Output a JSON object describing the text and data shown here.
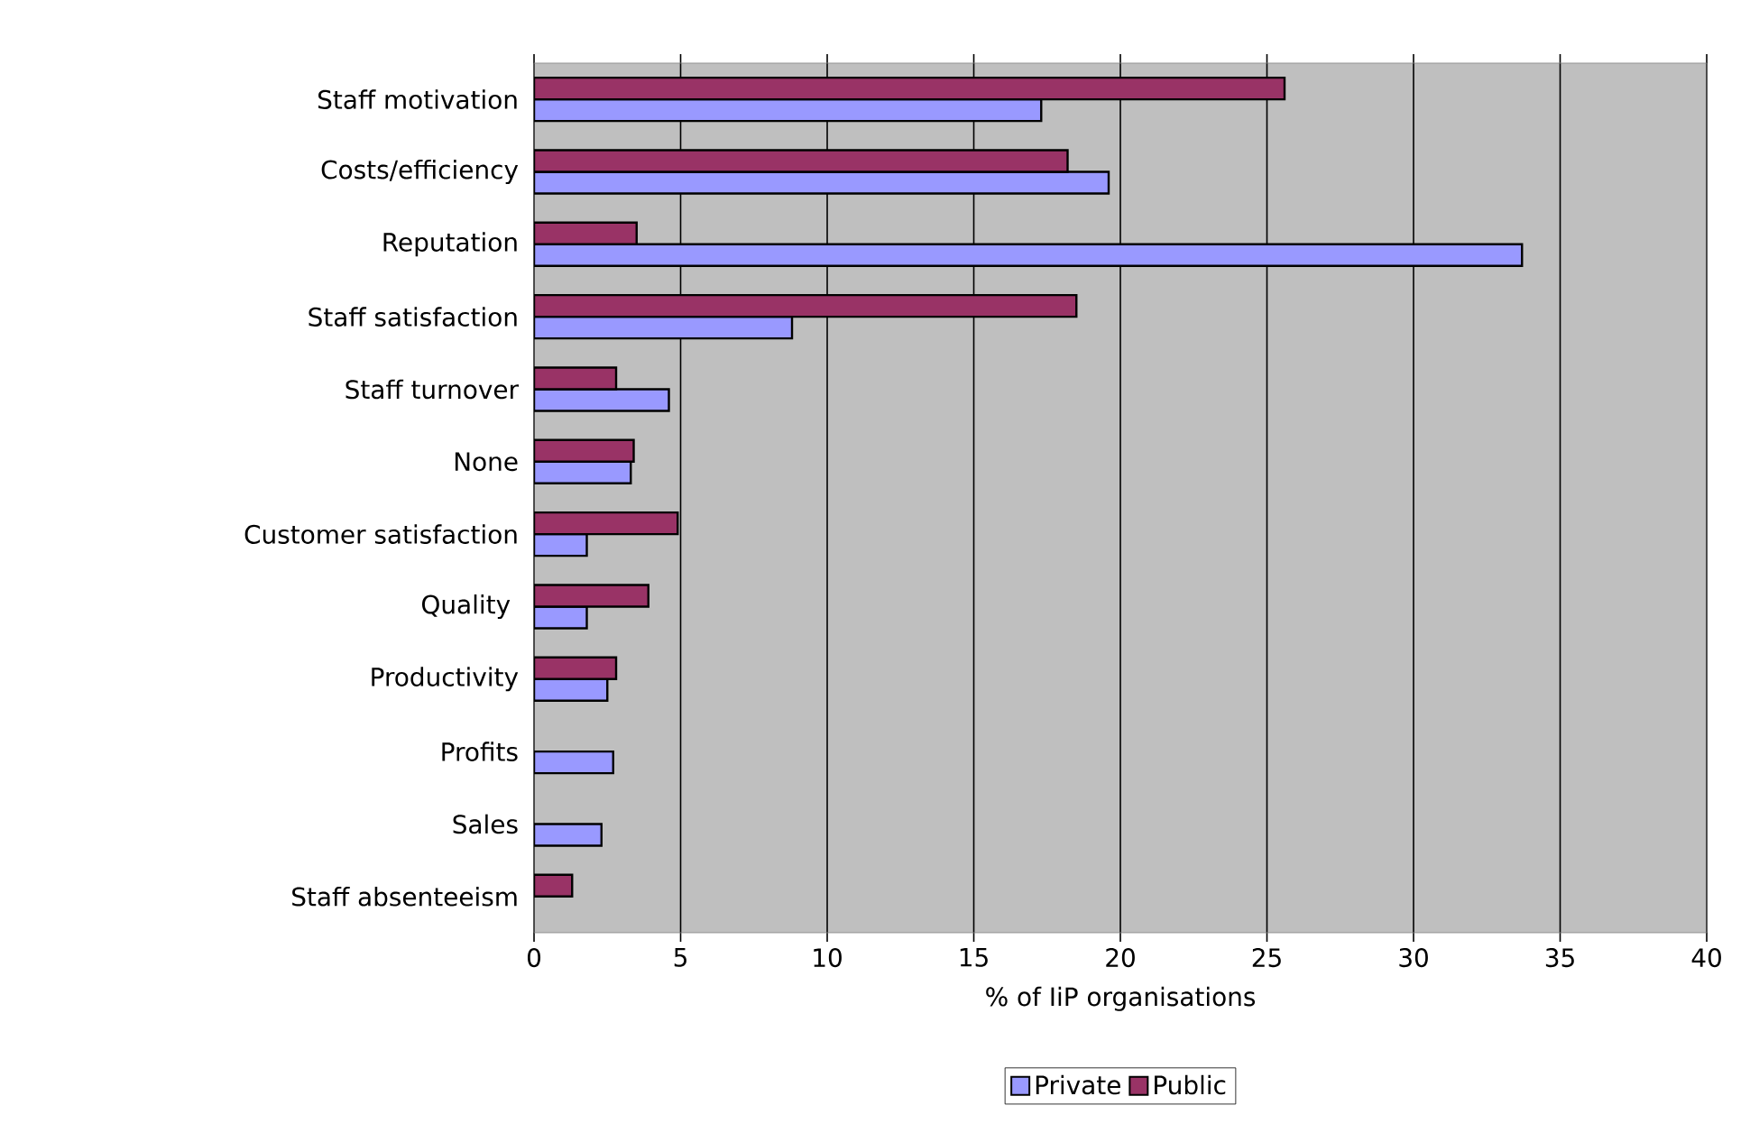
{
  "chart_data": {
    "type": "bar",
    "orientation": "horizontal",
    "xlabel": "% of IiP organisations",
    "categories": [
      "Staff motivation",
      "Costs/efficiency",
      "Reputation",
      "Staff satisfaction",
      "Staff turnover",
      "None",
      "Customer satisfaction",
      "Quality ",
      "Productivity",
      "Profits",
      "Sales",
      "Staff absenteeism"
    ],
    "series": [
      {
        "name": "Private",
        "color": "#9999ff",
        "values": [
          17.3,
          19.6,
          33.7,
          8.8,
          4.6,
          3.3,
          1.8,
          1.8,
          2.5,
          2.7,
          2.3,
          null
        ]
      },
      {
        "name": "Public",
        "color": "#993366",
        "values": [
          25.6,
          18.2,
          3.5,
          18.5,
          2.8,
          3.4,
          4.9,
          3.9,
          2.8,
          null,
          null,
          1.3
        ]
      }
    ],
    "xlim": [
      0,
      40
    ],
    "xticks": [
      0,
      5,
      10,
      15,
      20,
      25,
      30,
      35,
      40
    ],
    "grid": "x",
    "legend": "bottom"
  }
}
